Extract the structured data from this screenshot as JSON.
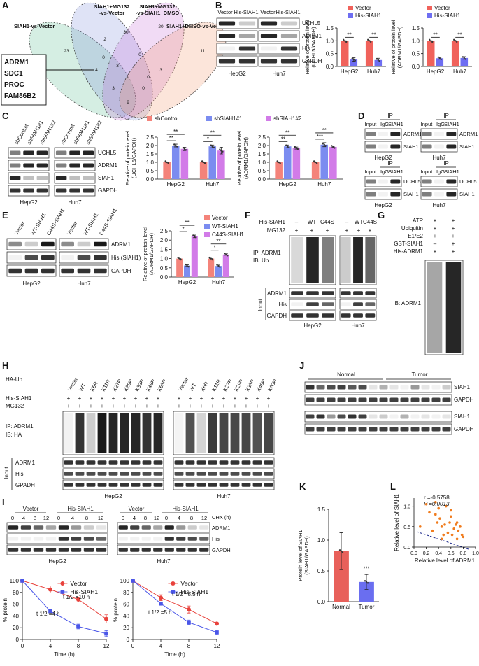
{
  "panels": {
    "A": {
      "letter": "A",
      "sets": [
        "SIAH1-vs-Vector",
        [
          "SIAH1+MG132",
          "-vs-Vector"
        ],
        [
          "SIAH1+MG132",
          "-vs-SIAH1+DMSO"
        ],
        "SIAH1+DMSO-vs-Vector"
      ],
      "counts": [
        23,
        2,
        30,
        20,
        11,
        0,
        4,
        3,
        0,
        1,
        3,
        3,
        0,
        9,
        0
      ],
      "genes": [
        "ADRM1",
        "SDC1",
        "PROC",
        "FAM86B2"
      ]
    },
    "B": {
      "letter": "B",
      "lanes": [
        "Vector",
        "His-SIAH1",
        "Vector",
        "His-SIAH1"
      ],
      "proteins": [
        "UCHL5",
        "ADRM1",
        "His",
        "GAPDH"
      ],
      "cells": [
        "HepG2",
        "Huh7"
      ],
      "charts": [
        {
          "type": "bar",
          "categories": [
            "HepG2",
            "Huh7"
          ],
          "series": [
            {
              "name": "Vector",
              "color": "#f0625b",
              "values": [
                1,
                1
              ],
              "errors": [
                0,
                0
              ]
            },
            {
              "name": "His-SIAH1",
              "color": "#6e6ef2",
              "values": [
                0.27,
                0.25
              ],
              "errors": [
                0.07,
                0.07
              ]
            }
          ],
          "ylim": [
            0,
            1.5
          ],
          "yticks": [
            {
              "value": 0,
              "label": "0.0"
            },
            0.5,
            {
              "value": 1,
              "label": "1.0"
            },
            1.5
          ],
          "ylabel": [
            "Relative of protein level",
            "(UCHL5/GAPDH)"
          ],
          "significance": [
            "**",
            "**"
          ]
        },
        {
          "type": "bar",
          "categories": [
            "HepG2",
            "Huh7"
          ],
          "series": [
            {
              "name": "Vector",
              "color": "#f0625b",
              "values": [
                1,
                1
              ],
              "errors": [
                0,
                0
              ]
            },
            {
              "name": "His-SIAH1",
              "color": "#6e6ef2",
              "values": [
                0.32,
                0.33
              ],
              "errors": [
                0.04,
                0.05
              ]
            }
          ],
          "ylim": [
            0,
            1.5
          ],
          "yticks": [
            {
              "value": 0,
              "label": "0.0"
            },
            0.5,
            {
              "value": 1,
              "label": "1.0"
            },
            1.5
          ],
          "ylabel": [
            "Relative of protein level",
            "(ADRM1/GAPDH)"
          ],
          "significance": [
            "**",
            "**"
          ]
        }
      ]
    },
    "C": {
      "letter": "C",
      "lanes": [
        "shControl",
        "shSIAH1#1",
        "shSIAH1#2",
        "shControl",
        "shSIAH1#1",
        "shSIAH1#2"
      ],
      "proteins": [
        "UCHL5",
        "ADRM1",
        "SIAH1",
        "GAPDH"
      ],
      "cells": [
        "HepG2",
        "Huh7"
      ],
      "charts": [
        {
          "type": "bar",
          "categories": [
            "HepG2",
            "Huh7"
          ],
          "series": [
            {
              "name": "shControl",
              "color": "#f4837a",
              "values": [
                1,
                1
              ],
              "errors": [
                0,
                0
              ]
            },
            {
              "name": "shSIAH1#1",
              "color": "#7b8cf0",
              "values": [
                2.0,
                1.95
              ],
              "errors": [
                0.08,
                0.08
              ]
            },
            {
              "name": "shSIAH1#2",
              "color": "#d27be8",
              "values": [
                1.8,
                1.7
              ],
              "errors": [
                0.1,
                0.2
              ]
            }
          ],
          "ylim": [
            0,
            2.5
          ],
          "yticks": [
            {
              "value": 0,
              "label": "0.0"
            },
            0.5,
            {
              "value": 1,
              "label": "1.0"
            },
            1.5,
            {
              "value": 2,
              "label": "2.0"
            },
            2.5
          ],
          "ylabel": [
            "Relative of protein level",
            "(UCHL5/GAPDH)"
          ],
          "significance": [
            "**",
            "**",
            "*",
            "**"
          ]
        },
        {
          "type": "bar",
          "categories": [
            "HepG2",
            "Huh7"
          ],
          "series": [
            {
              "name": "shControl",
              "color": "#f4837a",
              "values": [
                1,
                1
              ],
              "errors": [
                0,
                0
              ]
            },
            {
              "name": "shSIAH1#1",
              "color": "#7b8cf0",
              "values": [
                1.95,
                2.05
              ],
              "errors": [
                0.08,
                0.12
              ]
            },
            {
              "name": "shSIAH1#2",
              "color": "#d27be8",
              "values": [
                1.85,
                1.92
              ],
              "errors": [
                0.06,
                0.04
              ]
            }
          ],
          "ylim": [
            0,
            2.5
          ],
          "yticks": [
            {
              "value": 0,
              "label": "0.0"
            },
            0.5,
            {
              "value": 1,
              "label": "1.0"
            },
            1.5,
            {
              "value": 2,
              "label": "2.0"
            },
            2.5
          ],
          "ylabel": [
            "Relative of protein level",
            "(ADRM1/GAPDH)"
          ],
          "significance": [
            "**",
            "**",
            "***",
            "**"
          ]
        }
      ]
    },
    "D": {
      "letter": "D",
      "blots": [
        {
          "ip": "IP",
          "cols": [
            "Input",
            "IgG",
            "SIAH1"
          ],
          "rows": [
            "ADRM1",
            "SIAH1"
          ],
          "cell": "HepG2"
        },
        {
          "ip": "IP",
          "cols": [
            "Input",
            "IgG",
            "SIAH1"
          ],
          "rows": [
            "ADRM1",
            "SIAH1"
          ],
          "cell": "Huh7"
        },
        {
          "ip": "IP",
          "cols": [
            "Input",
            "IgG",
            "SIAH1"
          ],
          "rows": [
            "UCHL5",
            "SIAH1"
          ],
          "cell": "HepG2"
        },
        {
          "ip": "IP",
          "cols": [
            "Input",
            "IgG",
            "SIAH1"
          ],
          "rows": [
            "UCHL5",
            "SIAH1"
          ],
          "cell": "Huh7"
        }
      ]
    },
    "E": {
      "letter": "E",
      "lanes": [
        "Vector",
        "WT-SIAH1",
        "C44S-SIAH1",
        "Vector",
        "WT-SIAH1",
        "C44S-SIAH1"
      ],
      "proteins": [
        "ADRM1",
        "His (SIAH1)",
        "GAPDH"
      ],
      "cells": [
        "HepG2",
        "Huh7"
      ],
      "chart": {
        "type": "bar",
        "categories": [
          "HepG2",
          "Huh7"
        ],
        "series": [
          {
            "name": "Vector",
            "color": "#f4837a",
            "values": [
              1,
              1
            ],
            "errors": [
              0,
              0
            ]
          },
          {
            "name": "WT-SIAH1",
            "color": "#7b8cf0",
            "values": [
              0.62,
              0.6
            ],
            "errors": [
              0.05,
              0.05
            ]
          },
          {
            "name": "C44S-SIAH1",
            "color": "#d27be8",
            "values": [
              2.2,
              1.22
            ],
            "errors": [
              0.07,
              0.04
            ]
          }
        ],
        "ylim": [
          0,
          2.5
        ],
        "yticks": [
          {
            "value": 0,
            "label": "0.0"
          },
          0.5,
          {
            "value": 1,
            "label": "1.0"
          },
          1.5,
          {
            "value": 2,
            "label": "2.0"
          },
          2.5
        ],
        "ylabel": [
          "Relative of protein level",
          "(ADRM1/GAPDH)"
        ],
        "significance": [
          "*",
          "**",
          "*",
          "**"
        ]
      }
    },
    "F": {
      "letter": "F",
      "conditions": [
        "His-SIAH1",
        "MG132"
      ],
      "lanes": [
        "–",
        "WT",
        "C44S",
        "–",
        "WT",
        "C44S"
      ],
      "mg132": [
        "+",
        "+",
        "+",
        "+",
        "+",
        "+"
      ],
      "ip": [
        "IP: ADRM1",
        "IB: Ub"
      ],
      "input": "Input",
      "proteins": [
        "ADRM1",
        "His",
        "GAPDH"
      ],
      "cells": [
        "HepG2",
        "Huh7"
      ]
    },
    "G": {
      "letter": "G",
      "rows": [
        "ATP",
        "Ubiquitin",
        "E1/E2",
        "GST-SIAH1",
        "His-ADRM1"
      ],
      "col1": [
        "+",
        "+",
        "+",
        "–",
        "+"
      ],
      "col2": [
        "+",
        "+",
        "+",
        "+",
        "+"
      ],
      "ib": "IB: ADRM1"
    },
    "H": {
      "letter": "H",
      "haub": "HA-Ub",
      "lanes": [
        "Vector",
        "WT",
        "K6R",
        "K11R",
        "K27R",
        "K29R",
        "K33R",
        "K48R",
        "K63R",
        "Vector",
        "WT",
        "K6R",
        "K11R",
        "K27R",
        "K29R",
        "K33R",
        "K48R",
        "K63R"
      ],
      "rows": [
        "His-SIAH1",
        "MG132"
      ],
      "his": [
        "+",
        "+",
        "+",
        "+",
        "+",
        "+",
        "+",
        "+",
        "+",
        "+",
        "+",
        "+",
        "+",
        "+",
        "+",
        "+",
        "+",
        "+"
      ],
      "mg132": [
        "+",
        "+",
        "+",
        "+",
        "+",
        "+",
        "+",
        "+",
        "+",
        "+",
        "+",
        "+",
        "+",
        "+",
        "+",
        "+",
        "+",
        "+"
      ],
      "ip": [
        "IP: ADRM1",
        "IB: HA"
      ],
      "input": "Input",
      "proteins": [
        "ADRM1",
        "His",
        "GPADH"
      ],
      "cells": [
        "HepG2",
        "Huh7"
      ]
    },
    "I": {
      "letter": "I",
      "groups": [
        "Vector",
        "His-SIAH1",
        "Vector",
        "His-SIAH1"
      ],
      "chx": "CHX (h)",
      "times": [
        0,
        4,
        8,
        12
      ],
      "proteins": [
        "ADRM1",
        "His",
        "GAPDH"
      ],
      "cells": [
        "HepG2",
        "Huh7"
      ],
      "charts": [
        {
          "type": "line",
          "x": [
            0,
            4,
            8,
            12
          ],
          "series": [
            {
              "name": "Vector",
              "color": "#e8423c",
              "marker": "circle",
              "values": [
                100,
                85,
                68,
                35
              ],
              "errors": [
                0,
                6,
                4,
                7
              ]
            },
            {
              "name": "His-SIAH1",
              "color": "#4a56e8",
              "marker": "square",
              "values": [
                100,
                48,
                22,
                10
              ],
              "errors": [
                0,
                2,
                4,
                5
              ]
            }
          ],
          "xlim": [
            0,
            12
          ],
          "xticks": [
            0,
            4,
            8,
            12
          ],
          "ylim": [
            0,
            100
          ],
          "yticks": [
            0,
            20,
            40,
            60,
            80,
            100
          ],
          "xlabel": "Time (h)",
          "ylabel": "% protein",
          "annotations": [
            "t 1/2 =10 h",
            "t 1/2 =4 h"
          ]
        },
        {
          "type": "line",
          "x": [
            0,
            4,
            8,
            12
          ],
          "series": [
            {
              "name": "Vector",
              "color": "#e8423c",
              "marker": "circle",
              "values": [
                100,
                71,
                51,
                27
              ],
              "errors": [
                0,
                5,
                6,
                2
              ]
            },
            {
              "name": "His-SIAH1",
              "color": "#4a56e8",
              "marker": "square",
              "values": [
                100,
                61,
                29,
                12
              ],
              "errors": [
                0,
                2,
                4,
                4
              ]
            }
          ],
          "xlim": [
            0,
            12
          ],
          "xticks": [
            0,
            4,
            8,
            12
          ],
          "ylim": [
            0,
            100
          ],
          "yticks": [
            0,
            20,
            40,
            60,
            80,
            100
          ],
          "xlabel": "Time (h)",
          "ylabel": "% protein",
          "annotations": [
            "t 1/2 =8.5 h",
            "t 1/2 =5 h"
          ]
        }
      ]
    },
    "J": {
      "letter": "J",
      "groups": [
        "Normal",
        "Tumor"
      ],
      "proteins": [
        "SIAH1",
        "GAPDH",
        "SIAH1",
        "GAPDH"
      ]
    },
    "K": {
      "letter": "K",
      "chart": {
        "type": "bar",
        "categories": [
          "Normal",
          "Tumor"
        ],
        "series": [
          {
            "name": "SIAH1",
            "colors": [
              "#e8605a",
              "#6a6ef0"
            ],
            "values": [
              0.82,
              0.32
            ],
            "errors": [
              0.3,
              0.12
            ]
          }
        ],
        "ylim": [
          0,
          1.5
        ],
        "yticks": [
          {
            "value": 0,
            "label": "0.0"
          },
          0.5,
          {
            "value": 1,
            "label": "1.0"
          },
          1.5
        ],
        "ylabel": [
          "Protein level of SIAH1",
          "(SIAH1/GAPDH)"
        ],
        "significance": [
          "***"
        ]
      }
    },
    "L": {
      "letter": "L",
      "chart": {
        "type": "scatter",
        "color": "#f07c1e",
        "x": [
          0.1,
          0.2,
          0.25,
          0.3,
          0.35,
          0.38,
          0.4,
          0.42,
          0.45,
          0.48,
          0.5,
          0.52,
          0.55,
          0.58,
          0.6,
          0.62,
          0.65,
          0.68,
          0.7,
          0.72,
          0.75,
          0.78,
          0.8,
          0.35,
          0.6,
          0.45,
          0.7
        ],
        "y": [
          0.5,
          1.05,
          0.85,
          0.4,
          1.1,
          0.6,
          0.95,
          0.7,
          0.5,
          0.3,
          0.55,
          1.0,
          0.35,
          0.6,
          0.75,
          0.3,
          0.45,
          0.55,
          0.2,
          0.4,
          0.5,
          0.3,
          0.25,
          0.8,
          0.9,
          0.2,
          0.6
        ],
        "xlim": [
          0,
          1
        ],
        "xticks": [
          {
            "value": 0,
            "label": "0.0"
          },
          0.2,
          0.4,
          0.6,
          0.8,
          {
            "value": 1,
            "label": "1.0"
          }
        ],
        "ylim": [
          0,
          1.2
        ],
        "yticks": [
          {
            "value": 0,
            "label": "0.0"
          },
          0.5,
          {
            "value": 1,
            "label": "1.0"
          }
        ],
        "xlabel": "Relative level of ADRM1",
        "ylabel": "Relative level of SIAH1",
        "stats": [
          "r =-0.5758",
          "P =0.0013"
        ]
      }
    }
  }
}
